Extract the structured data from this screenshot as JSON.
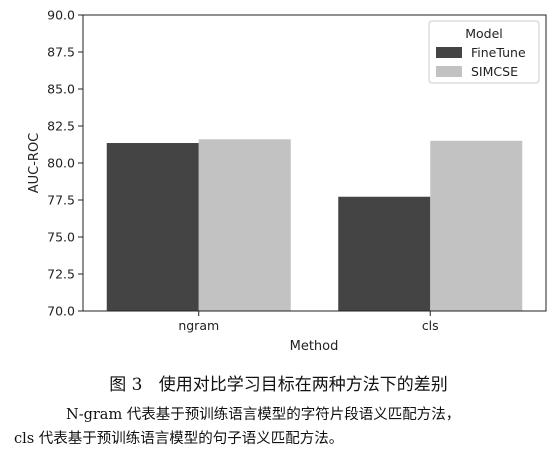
{
  "chart_data": {
    "type": "bar",
    "categories": [
      "ngram",
      "cls"
    ],
    "series": [
      {
        "name": "FineTune",
        "values": [
          81.35,
          77.72
        ],
        "color": "#444444"
      },
      {
        "name": "SIMCSE",
        "values": [
          81.6,
          81.5
        ],
        "color": "#c2c2c2"
      }
    ],
    "xlabel": "Method",
    "ylabel": "AUC-ROC",
    "ylim": [
      70.0,
      90.0
    ],
    "yticks": [
      "70.0",
      "72.5",
      "75.0",
      "77.5",
      "80.0",
      "82.5",
      "85.0",
      "87.5",
      "90.0"
    ],
    "legend": {
      "title": "Model",
      "placement": "top-right"
    },
    "grid": false
  },
  "caption": {
    "figure": "图 3",
    "title": "使用对比学习目标在两种方法下的差别"
  },
  "notes": {
    "line1": "N-gram 代表基于预训练语言模型的字符片段语义匹配方法，",
    "line2": "cls 代表基于预训练语言模型的句子语义匹配方法。"
  }
}
